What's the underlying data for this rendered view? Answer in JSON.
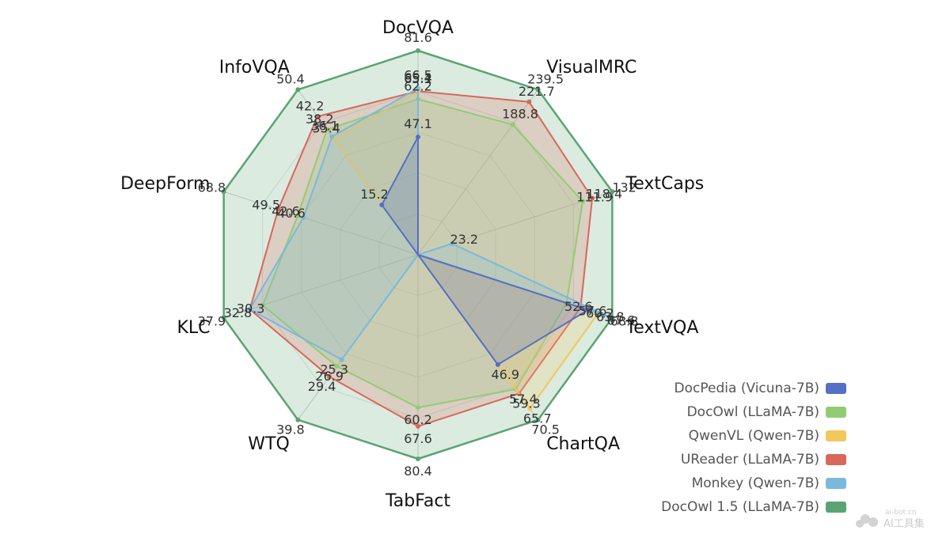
{
  "chart_data": {
    "type": "radar",
    "axes": [
      "DocVQA",
      "VisualMRC",
      "TextCaps",
      "TextVQA",
      "ChartQA",
      "TabFact",
      "WTQ",
      "KLC",
      "DeepForm",
      "InfoVQA"
    ],
    "series": [
      {
        "name": "DocPedia (Vicuna-7B)",
        "color": "#5470c6",
        "values": [
          47.1,
          null,
          null,
          60.2,
          46.9,
          null,
          null,
          null,
          null,
          15.2
        ],
        "labels": [
          "47.1",
          "",
          "",
          "60.2",
          "46.9",
          "",
          "",
          "",
          "",
          "15.2"
        ]
      },
      {
        "name": "DocOwl (LLaMA-7B)",
        "color": "#91cc75",
        "values": [
          62.2,
          188.8,
          111.9,
          52.6,
          57.4,
          60.2,
          26.9,
          30.3,
          42.6,
          38.2
        ],
        "labels": [
          "62.2",
          "188.8",
          "111.9",
          "52.6",
          "57.4",
          "60.2",
          "26.9",
          "30.3",
          "42.6",
          "38.2"
        ]
      },
      {
        "name": "QwenVL (Qwen-7B)",
        "color": "#f2c75e",
        "values": [
          65.1,
          null,
          null,
          63.8,
          65.7,
          null,
          null,
          null,
          null,
          35.4
        ],
        "labels": [
          "65.1",
          "",
          "",
          "63.8",
          "65.7",
          "",
          "",
          "",
          "",
          "35.4"
        ]
      },
      {
        "name": "UReader (LLaMA-7B)",
        "color": "#d9675c",
        "values": [
          65.4,
          221.7,
          118.4,
          57.6,
          59.3,
          67.6,
          29.4,
          32.8,
          49.5,
          42.2
        ],
        "labels": [
          "65.4",
          "221.7",
          "118.4",
          "57.6",
          "59.3",
          "67.6",
          "29.4",
          "32.8",
          "49.5",
          "42.2"
        ]
      },
      {
        "name": "Monkey (Qwen-7B)",
        "color": "#7ab9dc",
        "values": [
          66.5,
          null,
          23.2,
          67.6,
          null,
          null,
          25.3,
          32.8,
          40.6,
          36.1
        ],
        "labels": [
          "66.5",
          "",
          "23.2",
          "67.6",
          "",
          "",
          "25.3",
          "",
          "40.6",
          "36.1"
        ]
      },
      {
        "name": "DocOwl 1.5 (LLaMA-7B)",
        "color": "#5aa473",
        "values": [
          81.6,
          239.5,
          132,
          68.8,
          70.5,
          80.4,
          39.8,
          37.9,
          68.8,
          50.4
        ],
        "labels": [
          "81.6",
          "239.5",
          "132",
          "68.8",
          "70.5",
          "80.4",
          "39.8",
          "37.9",
          "68.8",
          "50.4"
        ]
      }
    ],
    "legend": "bottom-right",
    "grid": true
  },
  "watermark": {
    "line1": "ai-bot.cn",
    "line2": "AI工具集"
  }
}
